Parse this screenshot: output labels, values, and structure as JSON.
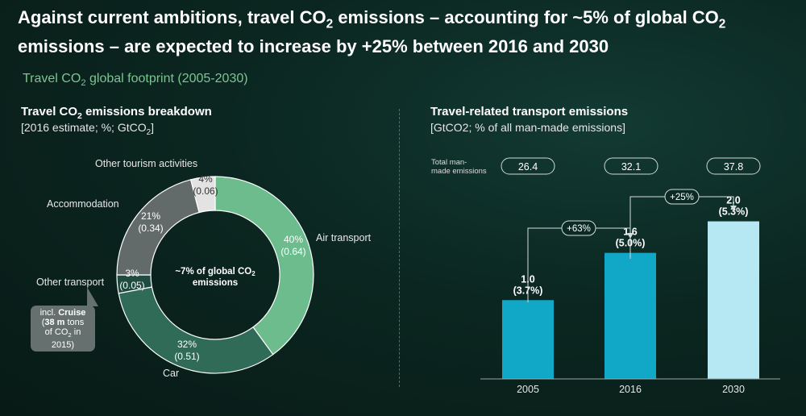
{
  "headline": {
    "line1_pre": "Against current ambitions, travel CO",
    "line1_sub": "2",
    "line1_mid": " emissions – accounting for ~5% of global CO",
    "line1_sub2": "2",
    "line2": "emissions – are expected to increase by +25% between 2016 and 2030"
  },
  "subtitle": {
    "pre": "Travel CO",
    "sub": "2",
    "post": " global footprint (2005-2030)"
  },
  "left_panel": {
    "title_pre": "Travel CO",
    "title_sub": "2",
    "title_post": " emissions breakdown",
    "units_pre": "[2016 estimate; %; GtCO",
    "units_sub": "2",
    "units_post": "]",
    "center_line1": "~7% of global CO",
    "center_line1_sub": "2",
    "center_line2": "emissions",
    "callout": {
      "pre": "incl. ",
      "bold1": "Cruise",
      "open": "(",
      "bold2": "38 m",
      "post": " tons",
      "line3_pre": "of CO",
      "line3_sub": "2",
      "line3_post": " in",
      "line4": "2015)"
    }
  },
  "right_panel": {
    "title": "Travel-related transport emissions",
    "units": "[GtCO2; % of all man-made emissions]",
    "total_label_line1": "Total man-",
    "total_label_line2": "made emissions",
    "totals": [
      "26.4",
      "32.1",
      "37.8"
    ],
    "growth_labels": [
      "+63%",
      "+25%"
    ]
  },
  "colors": {
    "air": "#6cbc8d",
    "car": "#2f6b56",
    "other_transport": "#1f4b40",
    "accommodation": "#636b6a",
    "other_tourism": "#e3e3e3",
    "bar_dark": "#11a8c7",
    "bar_light": "#b5e8f2"
  },
  "chart_data": [
    {
      "type": "pie",
      "subtype": "donut",
      "categories": [
        "Air transport",
        "Car",
        "Other transport",
        "Accommodation",
        "Other tourism activities"
      ],
      "values": [
        40,
        32,
        3,
        21,
        4
      ],
      "gtco2": [
        0.64,
        0.51,
        0.05,
        0.34,
        0.06
      ],
      "labels": [
        [
          "40%",
          "(0.64)"
        ],
        [
          "32%",
          "(0.51)"
        ],
        [
          "3%",
          "(0.05)"
        ],
        [
          "21%",
          "(0.34)"
        ],
        [
          "4%",
          "(0.06)"
        ]
      ]
    },
    {
      "type": "bar",
      "categories": [
        "2005",
        "2016",
        "2030"
      ],
      "values": [
        1.0,
        1.6,
        2.0
      ],
      "share_pct": [
        3.7,
        5.0,
        5.3
      ],
      "value_labels": [
        "1.0",
        "1.6",
        "2.0"
      ],
      "share_labels": [
        "(3.7%)",
        "(5.0%)",
        "(5.3%)"
      ],
      "ylim": [
        0,
        2.2
      ]
    }
  ]
}
